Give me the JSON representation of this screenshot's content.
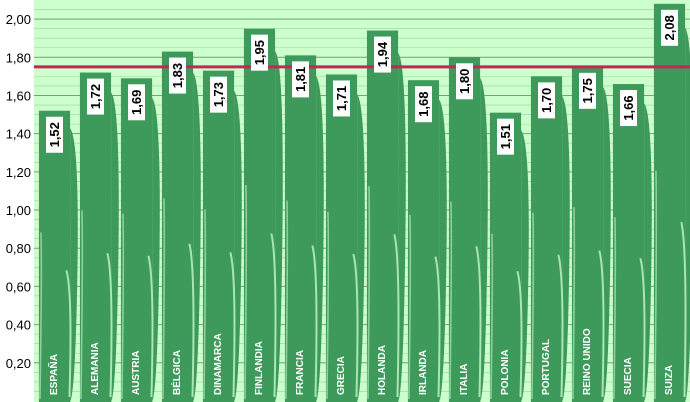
{
  "chart_data": {
    "type": "bar",
    "title": "",
    "xlabel": "",
    "ylabel": "",
    "categories": [
      "ESPAÑA",
      "ALEMANIA",
      "AUSTRIA",
      "BÉLGICA",
      "DINAMARCA",
      "FINLANDIA",
      "FRANCIA",
      "GRECIA",
      "HOLANDA",
      "IRLANDA",
      "ITALIA",
      "POLONIA",
      "PORTUGAL",
      "REINO UNIDO",
      "SUECIA",
      "SUIZA"
    ],
    "values": [
      1.52,
      1.72,
      1.69,
      1.83,
      1.73,
      1.95,
      1.81,
      1.71,
      1.94,
      1.68,
      1.8,
      1.51,
      1.7,
      1.75,
      1.66,
      2.08
    ],
    "value_labels": [
      "1,52",
      "1,72",
      "1,69",
      "1,83",
      "1,73",
      "1,95",
      "1,81",
      "1,71",
      "1,94",
      "1,68",
      "1,80",
      "1,51",
      "1,70",
      "1,75",
      "1,66",
      "2,08"
    ],
    "ylim": [
      0,
      2.1
    ],
    "yticks": [
      0.2,
      0.4,
      0.6,
      0.8,
      1.0,
      1.2,
      1.4,
      1.6,
      1.8,
      2.0
    ],
    "ytick_labels": [
      "0,20",
      "0,40",
      "0,60",
      "0,80",
      "1,00",
      "1,20",
      "1,40",
      "1,60",
      "1,80",
      "2,00"
    ],
    "reference_line": {
      "value": 1.75
    },
    "grid": true,
    "legend": "none",
    "colors": {
      "plot_background": "#ccffcc",
      "bar": "#3d9a5a",
      "grid": "#7aa07a",
      "reference_line": "#cc2255",
      "label_box": "#ffffff"
    }
  }
}
